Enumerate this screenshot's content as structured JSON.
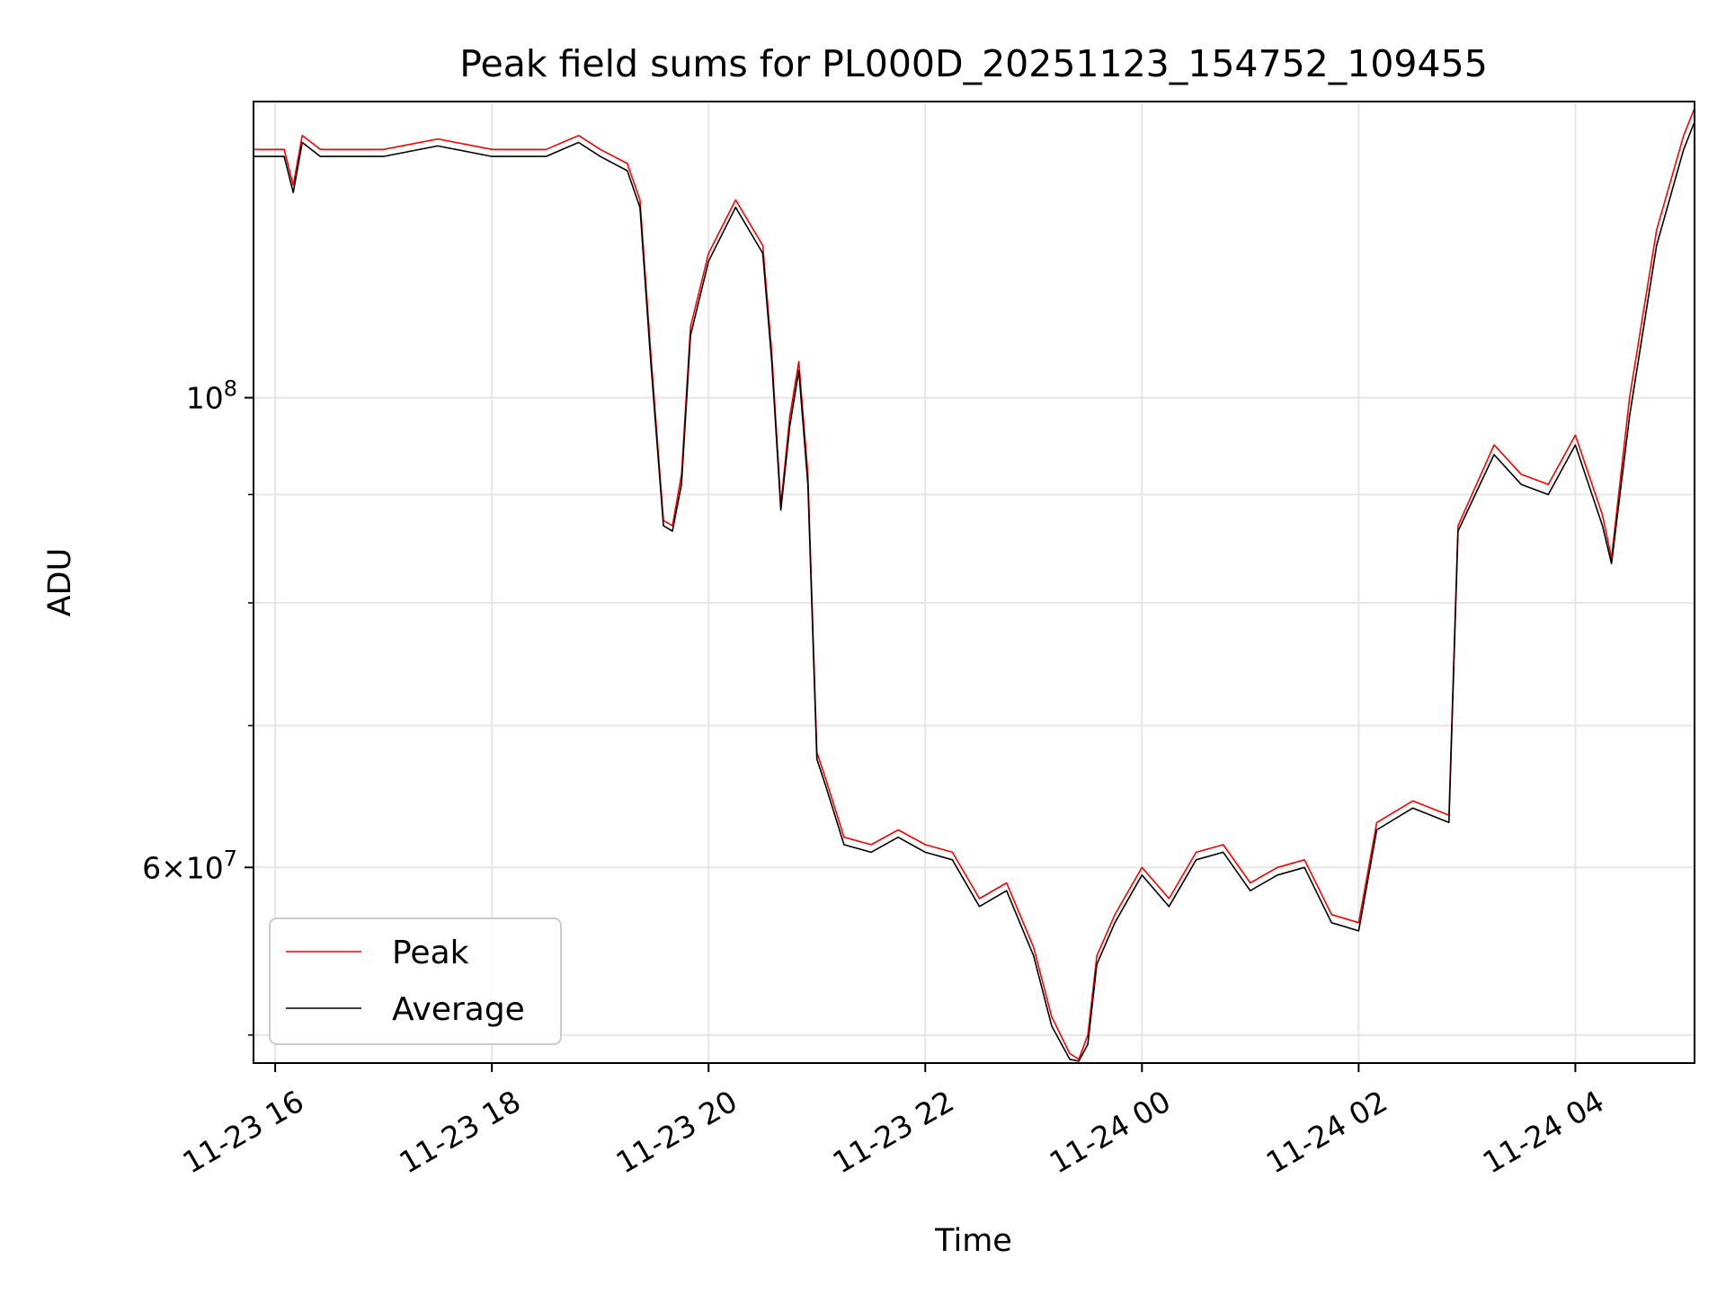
{
  "chart_data": {
    "type": "line",
    "title": "Peak field sums for PL000D_20251123_154752_109455",
    "xlabel": "Time",
    "ylabel": "ADU",
    "y_scale": "log",
    "ylim": [
      48500000,
      138000000
    ],
    "xlim": [
      "2025-11-23 15:48",
      "2025-11-24 05:06"
    ],
    "grid": true,
    "legend_position": "lower-left",
    "x_ticks": [
      {
        "t": "2025-11-23 16:00",
        "label": "11-23 16"
      },
      {
        "t": "2025-11-23 18:00",
        "label": "11-23 18"
      },
      {
        "t": "2025-11-23 20:00",
        "label": "11-23 20"
      },
      {
        "t": "2025-11-23 22:00",
        "label": "11-23 22"
      },
      {
        "t": "2025-11-24 00:00",
        "label": "11-24 00"
      },
      {
        "t": "2025-11-24 02:00",
        "label": "11-24 02"
      },
      {
        "t": "2025-11-24 04:00",
        "label": "11-24 04"
      }
    ],
    "y_major_ticks": [
      {
        "value": 100000000,
        "base": "10",
        "exp": "8"
      },
      {
        "value": 60000000,
        "mantissa": "6",
        "base": "10",
        "exp": "7"
      }
    ],
    "y_minor_gridlines": [
      50000000,
      70000000,
      80000000,
      90000000
    ],
    "series": [
      {
        "name": "Peak",
        "color": "#ff0000",
        "points": [
          [
            "2025-11-23 15:48",
            131000000
          ],
          [
            "2025-11-23 16:05",
            131000000
          ],
          [
            "2025-11-23 16:10",
            126000000
          ],
          [
            "2025-11-23 16:15",
            133000000
          ],
          [
            "2025-11-23 16:25",
            131000000
          ],
          [
            "2025-11-23 16:45",
            131000000
          ],
          [
            "2025-11-23 17:00",
            131000000
          ],
          [
            "2025-11-23 17:30",
            132500000
          ],
          [
            "2025-11-23 18:00",
            131000000
          ],
          [
            "2025-11-23 18:30",
            131000000
          ],
          [
            "2025-11-23 18:48",
            133000000
          ],
          [
            "2025-11-23 19:00",
            131000000
          ],
          [
            "2025-11-23 19:15",
            129000000
          ],
          [
            "2025-11-23 19:22",
            124000000
          ],
          [
            "2025-11-23 19:28",
            105000000
          ],
          [
            "2025-11-23 19:35",
            87500000
          ],
          [
            "2025-11-23 19:40",
            87000000
          ],
          [
            "2025-11-23 19:45",
            92000000
          ],
          [
            "2025-11-23 19:50",
            108000000
          ],
          [
            "2025-11-23 20:00",
            117000000
          ],
          [
            "2025-11-23 20:15",
            124000000
          ],
          [
            "2025-11-23 20:30",
            118000000
          ],
          [
            "2025-11-23 20:35",
            105000000
          ],
          [
            "2025-11-23 20:40",
            89000000
          ],
          [
            "2025-11-23 20:45",
            98000000
          ],
          [
            "2025-11-23 20:50",
            104000000
          ],
          [
            "2025-11-23 20:55",
            92000000
          ],
          [
            "2025-11-23 21:00",
            68000000
          ],
          [
            "2025-11-23 21:05",
            66000000
          ],
          [
            "2025-11-23 21:15",
            62000000
          ],
          [
            "2025-11-23 21:30",
            61500000
          ],
          [
            "2025-11-23 21:45",
            62500000
          ],
          [
            "2025-11-23 22:00",
            61500000
          ],
          [
            "2025-11-23 22:15",
            61000000
          ],
          [
            "2025-11-23 22:30",
            58000000
          ],
          [
            "2025-11-23 22:45",
            59000000
          ],
          [
            "2025-11-23 23:00",
            55000000
          ],
          [
            "2025-11-23 23:10",
            51000000
          ],
          [
            "2025-11-23 23:20",
            49000000
          ],
          [
            "2025-11-23 23:25",
            48700000
          ],
          [
            "2025-11-23 23:30",
            50000000
          ],
          [
            "2025-11-23 23:35",
            54500000
          ],
          [
            "2025-11-23 23:45",
            57000000
          ],
          [
            "2025-11-24 00:00",
            60000000
          ],
          [
            "2025-11-24 00:15",
            58000000
          ],
          [
            "2025-11-24 00:30",
            61000000
          ],
          [
            "2025-11-24 00:45",
            61500000
          ],
          [
            "2025-11-24 01:00",
            59000000
          ],
          [
            "2025-11-24 01:15",
            60000000
          ],
          [
            "2025-11-24 01:30",
            60500000
          ],
          [
            "2025-11-24 01:45",
            57000000
          ],
          [
            "2025-11-24 02:00",
            56500000
          ],
          [
            "2025-11-24 02:10",
            63000000
          ],
          [
            "2025-11-24 02:30",
            64500000
          ],
          [
            "2025-11-24 02:50",
            63500000
          ],
          [
            "2025-11-24 02:55",
            87000000
          ],
          [
            "2025-11-24 03:15",
            95000000
          ],
          [
            "2025-11-24 03:30",
            92000000
          ],
          [
            "2025-11-24 03:45",
            91000000
          ],
          [
            "2025-11-24 04:00",
            96000000
          ],
          [
            "2025-11-24 04:15",
            88000000
          ],
          [
            "2025-11-24 04:20",
            84000000
          ],
          [
            "2025-11-24 04:30",
            100000000
          ],
          [
            "2025-11-24 04:45",
            120000000
          ],
          [
            "2025-11-24 05:00",
            133000000
          ],
          [
            "2025-11-24 05:06",
            137000000
          ]
        ]
      },
      {
        "name": "Average",
        "color": "#000000",
        "points": [
          [
            "2025-11-23 15:48",
            130000000
          ],
          [
            "2025-11-23 16:05",
            130000000
          ],
          [
            "2025-11-23 16:10",
            125000000
          ],
          [
            "2025-11-23 16:15",
            132000000
          ],
          [
            "2025-11-23 16:25",
            130000000
          ],
          [
            "2025-11-23 16:45",
            130000000
          ],
          [
            "2025-11-23 17:00",
            130000000
          ],
          [
            "2025-11-23 17:30",
            131500000
          ],
          [
            "2025-11-23 18:00",
            130000000
          ],
          [
            "2025-11-23 18:30",
            130000000
          ],
          [
            "2025-11-23 18:48",
            132000000
          ],
          [
            "2025-11-23 19:00",
            130000000
          ],
          [
            "2025-11-23 19:15",
            128000000
          ],
          [
            "2025-11-23 19:22",
            123000000
          ],
          [
            "2025-11-23 19:28",
            104000000
          ],
          [
            "2025-11-23 19:35",
            87000000
          ],
          [
            "2025-11-23 19:40",
            86500000
          ],
          [
            "2025-11-23 19:45",
            91000000
          ],
          [
            "2025-11-23 19:50",
            107000000
          ],
          [
            "2025-11-23 20:00",
            116000000
          ],
          [
            "2025-11-23 20:15",
            123000000
          ],
          [
            "2025-11-23 20:30",
            117000000
          ],
          [
            "2025-11-23 20:35",
            104000000
          ],
          [
            "2025-11-23 20:40",
            88500000
          ],
          [
            "2025-11-23 20:45",
            97000000
          ],
          [
            "2025-11-23 20:50",
            103000000
          ],
          [
            "2025-11-23 20:55",
            91000000
          ],
          [
            "2025-11-23 21:00",
            67500000
          ],
          [
            "2025-11-23 21:05",
            65500000
          ],
          [
            "2025-11-23 21:15",
            61500000
          ],
          [
            "2025-11-23 21:30",
            61000000
          ],
          [
            "2025-11-23 21:45",
            62000000
          ],
          [
            "2025-11-23 22:00",
            61000000
          ],
          [
            "2025-11-23 22:15",
            60500000
          ],
          [
            "2025-11-23 22:30",
            57500000
          ],
          [
            "2025-11-23 22:45",
            58500000
          ],
          [
            "2025-11-23 23:00",
            54500000
          ],
          [
            "2025-11-23 23:10",
            50500000
          ],
          [
            "2025-11-23 23:20",
            48700000
          ],
          [
            "2025-11-23 23:25",
            48600000
          ],
          [
            "2025-11-23 23:30",
            49500000
          ],
          [
            "2025-11-23 23:35",
            54000000
          ],
          [
            "2025-11-23 23:45",
            56500000
          ],
          [
            "2025-11-24 00:00",
            59500000
          ],
          [
            "2025-11-24 00:15",
            57500000
          ],
          [
            "2025-11-24 00:30",
            60500000
          ],
          [
            "2025-11-24 00:45",
            61000000
          ],
          [
            "2025-11-24 01:00",
            58500000
          ],
          [
            "2025-11-24 01:15",
            59500000
          ],
          [
            "2025-11-24 01:30",
            60000000
          ],
          [
            "2025-11-24 01:45",
            56500000
          ],
          [
            "2025-11-24 02:00",
            56000000
          ],
          [
            "2025-11-24 02:10",
            62500000
          ],
          [
            "2025-11-24 02:30",
            64000000
          ],
          [
            "2025-11-24 02:50",
            63000000
          ],
          [
            "2025-11-24 02:55",
            86500000
          ],
          [
            "2025-11-24 03:15",
            94000000
          ],
          [
            "2025-11-24 03:30",
            91000000
          ],
          [
            "2025-11-24 03:45",
            90000000
          ],
          [
            "2025-11-24 04:00",
            95000000
          ],
          [
            "2025-11-24 04:15",
            87000000
          ],
          [
            "2025-11-24 04:20",
            83500000
          ],
          [
            "2025-11-24 04:30",
            98000000
          ],
          [
            "2025-11-24 04:45",
            118000000
          ],
          [
            "2025-11-24 05:00",
            131000000
          ],
          [
            "2025-11-24 05:06",
            135000000
          ]
        ]
      }
    ]
  }
}
